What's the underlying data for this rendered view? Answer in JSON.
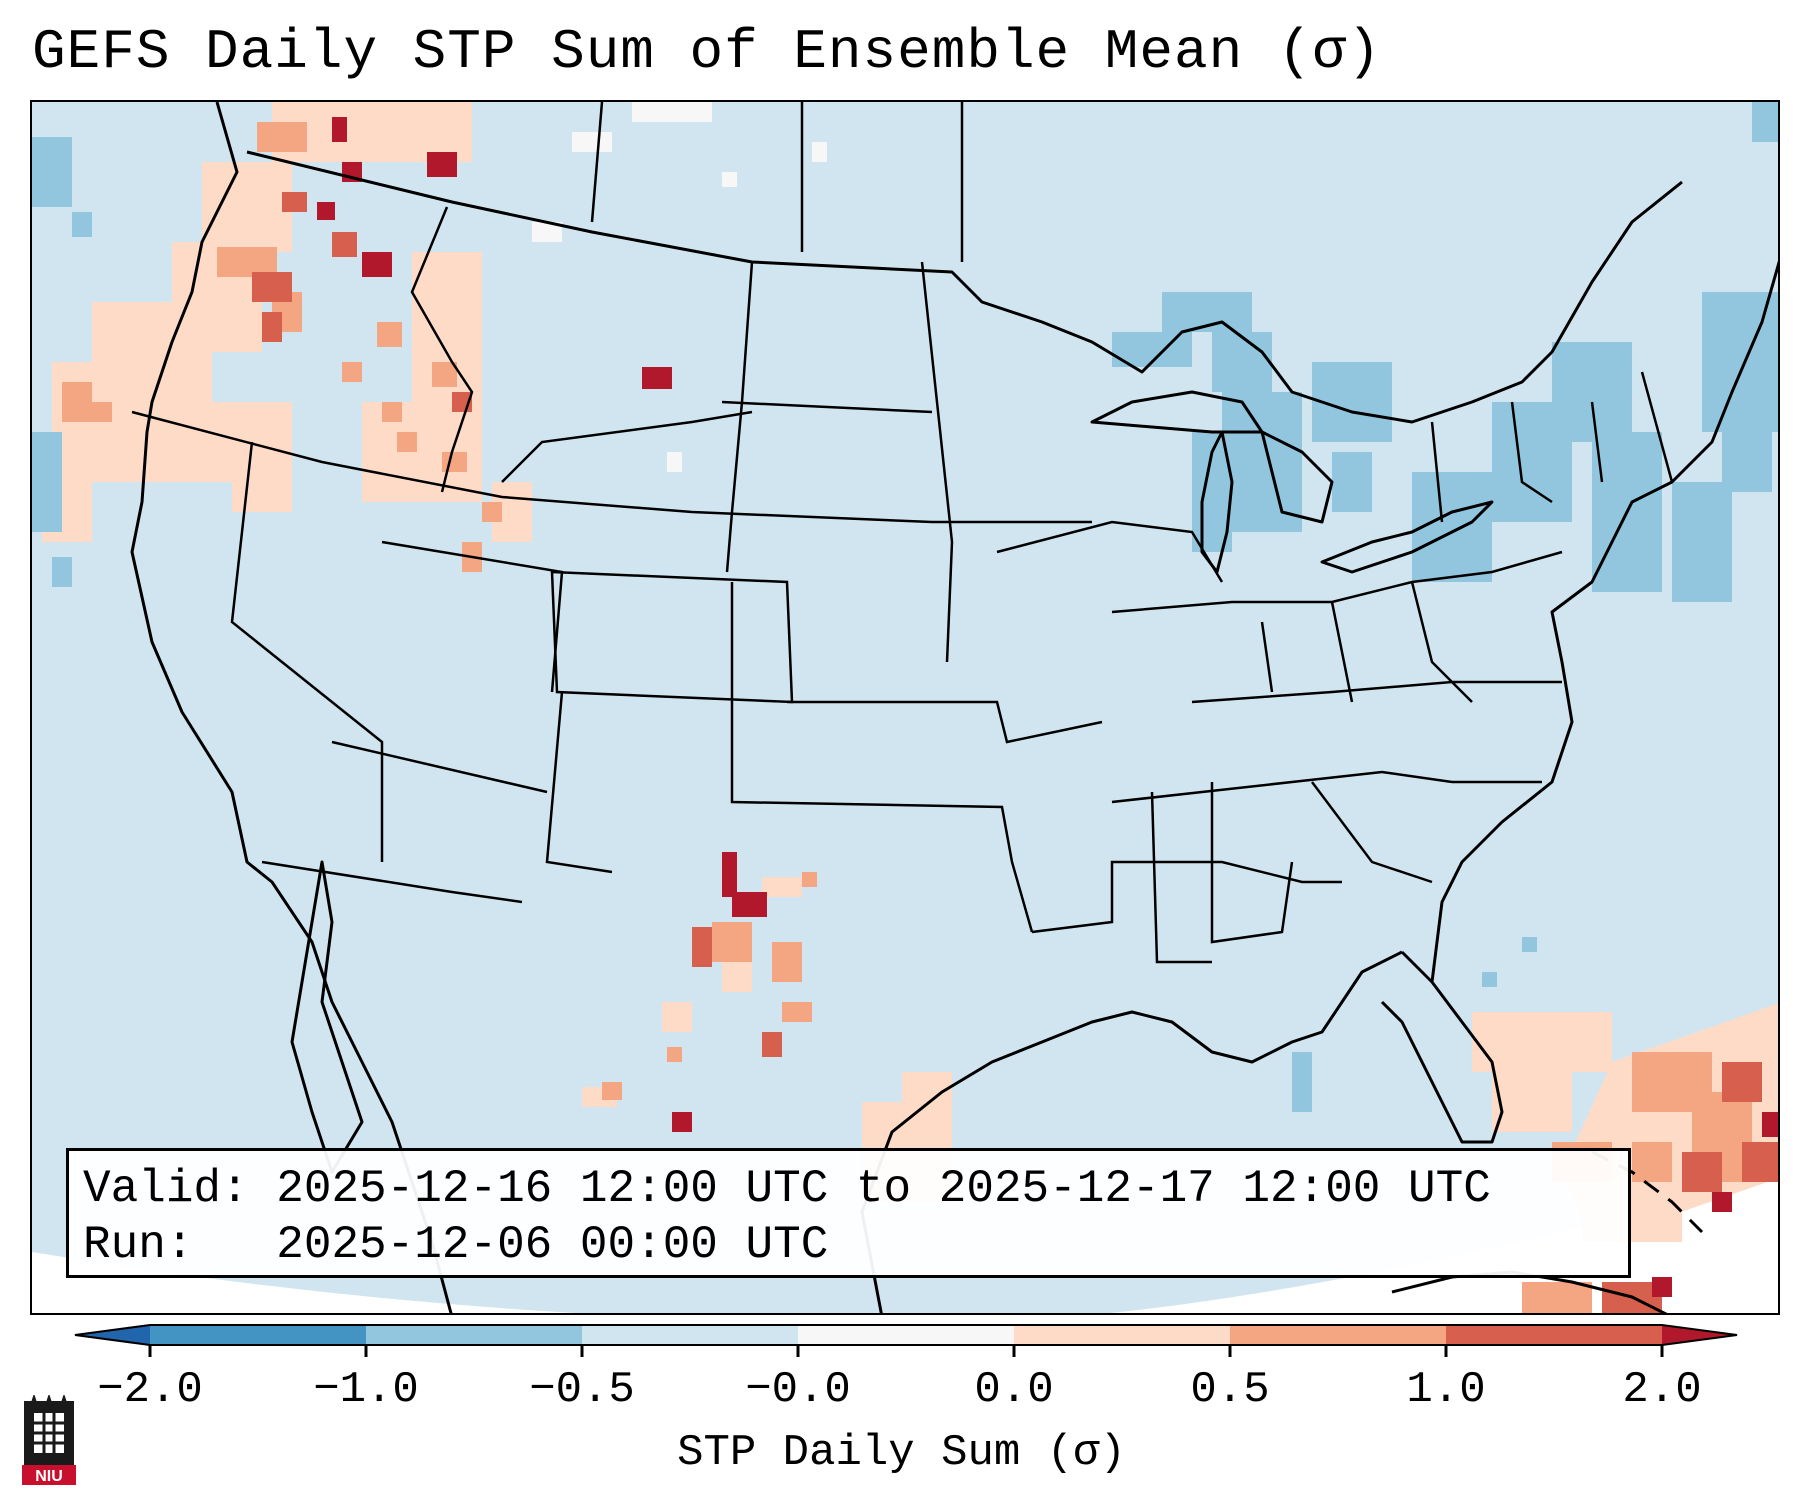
{
  "title": "GEFS Daily STP Sum of Ensemble Mean (σ)",
  "info": {
    "valid_line": "Valid: 2025-12-16 12:00 UTC to 2025-12-17 12:00 UTC",
    "run_line": "Run:   2025-12-06 00:00 UTC"
  },
  "colorbar": {
    "label": "STP Daily Sum (σ)",
    "ticks": [
      "−2.0",
      "−1.0",
      "−0.5",
      "−0.0",
      "0.0",
      "0.5",
      "1.0",
      "2.0"
    ],
    "bins": [
      {
        "range": "< -2.0",
        "color": "#2166ac"
      },
      {
        "range": "-2.0 to -1.0",
        "color": "#4393c3"
      },
      {
        "range": "-1.0 to -0.5",
        "color": "#92c5de"
      },
      {
        "range": "-0.5 to -0.0",
        "color": "#d1e5f0"
      },
      {
        "range": "-0.0 to 0.0",
        "color": "#f7f7f7"
      },
      {
        "range": "0.0 to 0.5",
        "color": "#fddbc7"
      },
      {
        "range": "0.5 to 1.0",
        "color": "#f4a582"
      },
      {
        "range": "1.0 to 2.0",
        "color": "#d6604d"
      },
      {
        "range": "> 2.0",
        "color": "#b2182b"
      }
    ]
  },
  "map": {
    "projection": "Lambert Conformal, CONUS",
    "base_value_color": "#d1e5f0",
    "highlights": [
      {
        "region": "Pacific Northwest",
        "level": "0.0 to 2.0+"
      },
      {
        "region": "Upper Great Lakes / Northeast",
        "level": "-1.0 to -0.5"
      },
      {
        "region": "West Texas / northern Mexico",
        "level": "0.5 to 2.0+"
      },
      {
        "region": "Western Atlantic / Bahamas / Cuba",
        "level": "0.0 to 2.0+"
      }
    ]
  },
  "logo_text": "NIU"
}
